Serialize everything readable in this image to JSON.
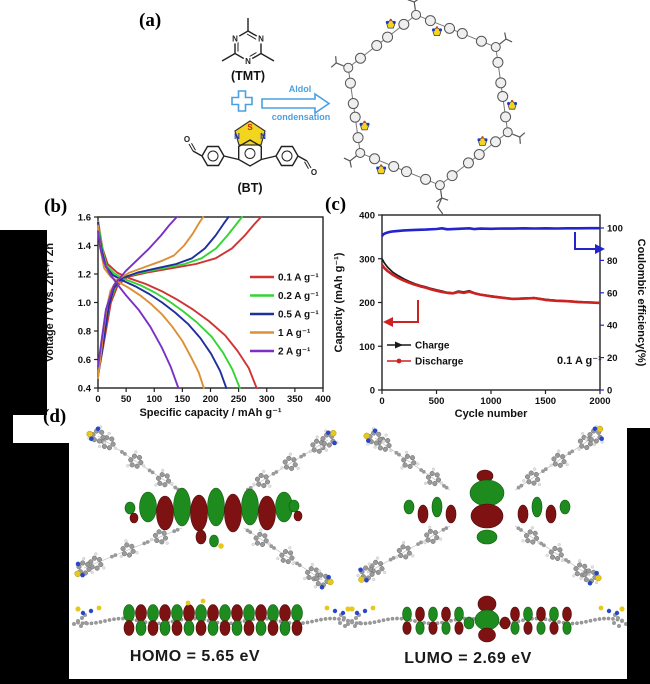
{
  "figure": {
    "panels": {
      "a": {
        "label": "(a)",
        "tmt_label": "(TMT)",
        "bt_label": "(BT)",
        "arrow_label_top": "Aldol",
        "arrow_label_bottom": "condensation",
        "atoms": {
          "nitrogen": "N",
          "sulfur": "S",
          "oxygen": "O"
        }
      },
      "b": {
        "label": "(b)"
      },
      "c": {
        "label": "(c)"
      },
      "d": {
        "label": "(d)",
        "homo_caption": "HOMO = 5.65 eV",
        "lumo_caption": "LUMO = 2.69 eV"
      }
    }
  },
  "colors": {
    "scheme_blue": "#4aa0e0",
    "bt_yellow": "#f2d51e",
    "orbital_green": "#1d8b1d",
    "orbital_red": "#7e1212",
    "charge": "#1a1a1a",
    "discharge": "#cc2222",
    "efficiency": "#2424cc"
  },
  "chart_data": [
    {
      "panel": "b",
      "type": "line",
      "title": "",
      "xlabel": "Specific capacity / mAh g⁻¹",
      "ylabel": "Voltage / V vs. Zn²⁺/ Zn",
      "xlim": [
        0,
        400
      ],
      "ylim": [
        0.4,
        1.6
      ],
      "xticks": [
        0,
        50,
        100,
        150,
        200,
        250,
        300,
        350,
        400
      ],
      "yticks": [
        "0.4",
        "0.6",
        "0.8",
        "1.0",
        "1.2",
        "1.4",
        "1.6"
      ],
      "grid": false,
      "legend_position": "right-inside",
      "series": [
        {
          "name": "0.1 A g⁻¹",
          "color": "#cf3333",
          "charge": [
            [
              0,
              0.5
            ],
            [
              6,
              0.62
            ],
            [
              15,
              0.82
            ],
            [
              23,
              1.0
            ],
            [
              35,
              1.12
            ],
            [
              52,
              1.18
            ],
            [
              87,
              1.21
            ],
            [
              130,
              1.24
            ],
            [
              174,
              1.27
            ],
            [
              209,
              1.31
            ],
            [
              238,
              1.38
            ],
            [
              261,
              1.47
            ],
            [
              278,
              1.55
            ],
            [
              290,
              1.6
            ]
          ],
          "discharge": [
            [
              0,
              1.58
            ],
            [
              3,
              1.5
            ],
            [
              8,
              1.38
            ],
            [
              17,
              1.27
            ],
            [
              34,
              1.21
            ],
            [
              56,
              1.17
            ],
            [
              85,
              1.13
            ],
            [
              113,
              1.08
            ],
            [
              141,
              1.02
            ],
            [
              169,
              0.95
            ],
            [
              197,
              0.87
            ],
            [
              226,
              0.77
            ],
            [
              248,
              0.66
            ],
            [
              268,
              0.54
            ],
            [
              282,
              0.4
            ]
          ]
        },
        {
          "name": "0.2 A g⁻¹",
          "color": "#35d435",
          "charge": [
            [
              0,
              0.49
            ],
            [
              5,
              0.61
            ],
            [
              13,
              0.81
            ],
            [
              20,
              0.99
            ],
            [
              31,
              1.11
            ],
            [
              46,
              1.18
            ],
            [
              77,
              1.21
            ],
            [
              115,
              1.24
            ],
            [
              154,
              1.27
            ],
            [
              184,
              1.31
            ],
            [
              210,
              1.38
            ],
            [
              230,
              1.47
            ],
            [
              246,
              1.55
            ],
            [
              256,
              1.6
            ]
          ],
          "discharge": [
            [
              0,
              1.57
            ],
            [
              3,
              1.49
            ],
            [
              8,
              1.37
            ],
            [
              15,
              1.26
            ],
            [
              30,
              1.2
            ],
            [
              50,
              1.16
            ],
            [
              76,
              1.12
            ],
            [
              101,
              1.07
            ],
            [
              126,
              1.01
            ],
            [
              151,
              0.94
            ],
            [
              176,
              0.86
            ],
            [
              202,
              0.76
            ],
            [
              222,
              0.65
            ],
            [
              239,
              0.53
            ],
            [
              252,
              0.4
            ]
          ]
        },
        {
          "name": "0.5 A g⁻¹",
          "color": "#1f2f9e",
          "charge": [
            [
              0,
              0.48
            ],
            [
              5,
              0.6
            ],
            [
              12,
              0.79
            ],
            [
              19,
              0.97
            ],
            [
              28,
              1.1
            ],
            [
              42,
              1.17
            ],
            [
              70,
              1.21
            ],
            [
              104,
              1.24
            ],
            [
              139,
              1.27
            ],
            [
              167,
              1.31
            ],
            [
              190,
              1.38
            ],
            [
              209,
              1.47
            ],
            [
              223,
              1.55
            ],
            [
              232,
              1.6
            ]
          ],
          "discharge": [
            [
              0,
              1.56
            ],
            [
              2,
              1.48
            ],
            [
              7,
              1.36
            ],
            [
              14,
              1.25
            ],
            [
              27,
              1.19
            ],
            [
              46,
              1.15
            ],
            [
              68,
              1.11
            ],
            [
              91,
              1.06
            ],
            [
              114,
              1.0
            ],
            [
              137,
              0.93
            ],
            [
              160,
              0.85
            ],
            [
              182,
              0.75
            ],
            [
              201,
              0.64
            ],
            [
              217,
              0.52
            ],
            [
              228,
              0.4
            ]
          ]
        },
        {
          "name": "1 A g⁻¹",
          "color": "#dd8f35",
          "charge": [
            [
              0,
              0.47
            ],
            [
              4,
              0.6
            ],
            [
              9,
              0.78
            ],
            [
              15,
              0.95
            ],
            [
              22,
              1.08
            ],
            [
              34,
              1.16
            ],
            [
              56,
              1.21
            ],
            [
              84,
              1.25
            ],
            [
              112,
              1.29
            ],
            [
              135,
              1.33
            ],
            [
              153,
              1.4
            ],
            [
              168,
              1.48
            ],
            [
              180,
              1.56
            ],
            [
              187,
              1.6
            ]
          ],
          "discharge": [
            [
              0,
              1.54
            ],
            [
              2,
              1.46
            ],
            [
              6,
              1.34
            ],
            [
              11,
              1.24
            ],
            [
              23,
              1.18
            ],
            [
              38,
              1.14
            ],
            [
              56,
              1.1
            ],
            [
              75,
              1.05
            ],
            [
              94,
              0.99
            ],
            [
              113,
              0.92
            ],
            [
              132,
              0.83
            ],
            [
              150,
              0.73
            ],
            [
              165,
              0.62
            ],
            [
              179,
              0.51
            ],
            [
              188,
              0.4
            ]
          ]
        },
        {
          "name": "2 A g⁻¹",
          "color": "#7b2fc4",
          "charge": [
            [
              0,
              0.55
            ],
            [
              7,
              0.75
            ],
            [
              14,
              0.95
            ],
            [
              28,
              1.12
            ],
            [
              49,
              1.22
            ],
            [
              70,
              1.3
            ],
            [
              91,
              1.38
            ],
            [
              112,
              1.47
            ],
            [
              126,
              1.54
            ],
            [
              140,
              1.6
            ]
          ],
          "discharge": [
            [
              0,
              1.5
            ],
            [
              4,
              1.38
            ],
            [
              11,
              1.28
            ],
            [
              21,
              1.2
            ],
            [
              36,
              1.12
            ],
            [
              50,
              1.05
            ],
            [
              72,
              0.95
            ],
            [
              93,
              0.83
            ],
            [
              114,
              0.68
            ],
            [
              129,
              0.55
            ],
            [
              143,
              0.4
            ]
          ]
        }
      ]
    },
    {
      "panel": "c",
      "type": "line",
      "title": "",
      "xlabel": "Cycle number",
      "ylabel_left": "Capacity (mAh g⁻¹)",
      "ylabel_right": "Coulombic efficiency(%)",
      "xlim": [
        0,
        2000
      ],
      "ylim_left": [
        0,
        400
      ],
      "ylim_right": [
        0,
        100
      ],
      "xticks": [
        0,
        500,
        1000,
        1500,
        2000
      ],
      "yticks_left": [
        0,
        100,
        200,
        300,
        400
      ],
      "yticks_right": [
        0,
        20,
        40,
        60,
        80,
        100
      ],
      "grid": false,
      "annotation": "0.1 A g⁻¹",
      "series": [
        {
          "name": "Charge",
          "color": "#1a1a1a",
          "axis": "left",
          "points": [
            [
              0,
              300
            ],
            [
              20,
              291
            ],
            [
              50,
              281
            ],
            [
              100,
              269
            ],
            [
              150,
              261
            ],
            [
              200,
              254
            ],
            [
              250,
              248
            ],
            [
              300,
              243
            ],
            [
              350,
              239
            ],
            [
              400,
              236
            ],
            [
              450,
              232
            ],
            [
              500,
              229
            ],
            [
              550,
              226
            ],
            [
              600,
              223
            ],
            [
              650,
              222
            ],
            [
              700,
              226
            ],
            [
              750,
              224
            ],
            [
              800,
              227
            ],
            [
              850,
              222
            ],
            [
              900,
              219
            ],
            [
              950,
              217
            ],
            [
              1000,
              215
            ],
            [
              1100,
              212
            ],
            [
              1200,
              209
            ],
            [
              1300,
              210
            ],
            [
              1400,
              211
            ],
            [
              1500,
              207
            ],
            [
              1600,
              205
            ],
            [
              1700,
              204
            ],
            [
              1800,
              202
            ],
            [
              1900,
              201
            ],
            [
              2000,
              200
            ]
          ]
        },
        {
          "name": "Discharge",
          "color": "#cc2222",
          "axis": "left",
          "points": [
            [
              0,
              286
            ],
            [
              20,
              279
            ],
            [
              50,
              272
            ],
            [
              100,
              263
            ],
            [
              150,
              256
            ],
            [
              200,
              250
            ],
            [
              250,
              245
            ],
            [
              300,
              241
            ],
            [
              350,
              237
            ],
            [
              400,
              234
            ],
            [
              450,
              230
            ],
            [
              500,
              227
            ],
            [
              550,
              224
            ],
            [
              600,
              222
            ],
            [
              650,
              221
            ],
            [
              700,
              224
            ],
            [
              750,
              222
            ],
            [
              800,
              225
            ],
            [
              850,
              221
            ],
            [
              900,
              218
            ],
            [
              950,
              216
            ],
            [
              1000,
              214
            ],
            [
              1100,
              211
            ],
            [
              1200,
              208
            ],
            [
              1300,
              209
            ],
            [
              1400,
              210
            ],
            [
              1500,
              206
            ],
            [
              1600,
              204
            ],
            [
              1700,
              203
            ],
            [
              1800,
              201
            ],
            [
              1900,
              200
            ],
            [
              2000,
              199
            ]
          ]
        },
        {
          "name": "Coulombic efficiency",
          "color": "#2424cc",
          "axis": "right",
          "points": [
            [
              0,
              95
            ],
            [
              10,
              96
            ],
            [
              30,
              96.8
            ],
            [
              60,
              97.4
            ],
            [
              100,
              97.9
            ],
            [
              150,
              98.2
            ],
            [
              200,
              98.5
            ],
            [
              300,
              98.8
            ],
            [
              400,
              99.0
            ],
            [
              500,
              99.4
            ],
            [
              550,
              99.8
            ],
            [
              600,
              99.2
            ],
            [
              700,
              99.5
            ],
            [
              800,
              99.8
            ],
            [
              850,
              99.3
            ],
            [
              900,
              99.6
            ],
            [
              1000,
              99.5
            ],
            [
              1100,
              99.7
            ],
            [
              1200,
              99.6
            ],
            [
              1300,
              99.8
            ],
            [
              1400,
              99.7
            ],
            [
              1500,
              99.8
            ],
            [
              1600,
              99.7
            ],
            [
              1700,
              99.8
            ],
            [
              1800,
              99.8
            ],
            [
              1900,
              99.9
            ],
            [
              2000,
              99.9
            ]
          ]
        }
      ]
    }
  ]
}
